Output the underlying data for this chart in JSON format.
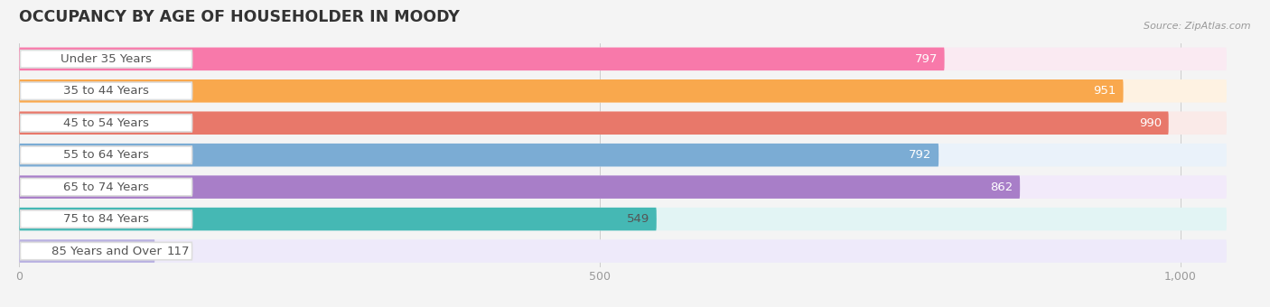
{
  "title": "OCCUPANCY BY AGE OF HOUSEHOLDER IN MOODY",
  "source": "Source: ZipAtlas.com",
  "categories": [
    "Under 35 Years",
    "35 to 44 Years",
    "45 to 54 Years",
    "55 to 64 Years",
    "65 to 74 Years",
    "75 to 84 Years",
    "85 Years and Over"
  ],
  "values": [
    797,
    951,
    990,
    792,
    862,
    549,
    117
  ],
  "bar_colors": [
    "#F879AA",
    "#F9A84D",
    "#E8786A",
    "#7BACD4",
    "#A87EC8",
    "#45B8B4",
    "#B8B0E0"
  ],
  "bar_bg_colors": [
    "#FAEAF2",
    "#FEF2E2",
    "#FAEAE8",
    "#EAF2FA",
    "#F2EAFA",
    "#E2F4F4",
    "#EEEAFA"
  ],
  "value_label_colors": [
    "#ffffff",
    "#ffffff",
    "#ffffff",
    "#ffffff",
    "#ffffff",
    "#555555",
    "#555555"
  ],
  "xlim_max": 1050,
  "bg_bar_max": 1040,
  "xticks": [
    0,
    500,
    1000
  ],
  "xtick_labels": [
    "0",
    "500",
    "1,000"
  ],
  "bg_color": "#f4f4f4",
  "title_fontsize": 12.5,
  "label_fontsize": 9.5,
  "value_fontsize": 9.5,
  "bar_height": 0.72,
  "n_bars": 7
}
